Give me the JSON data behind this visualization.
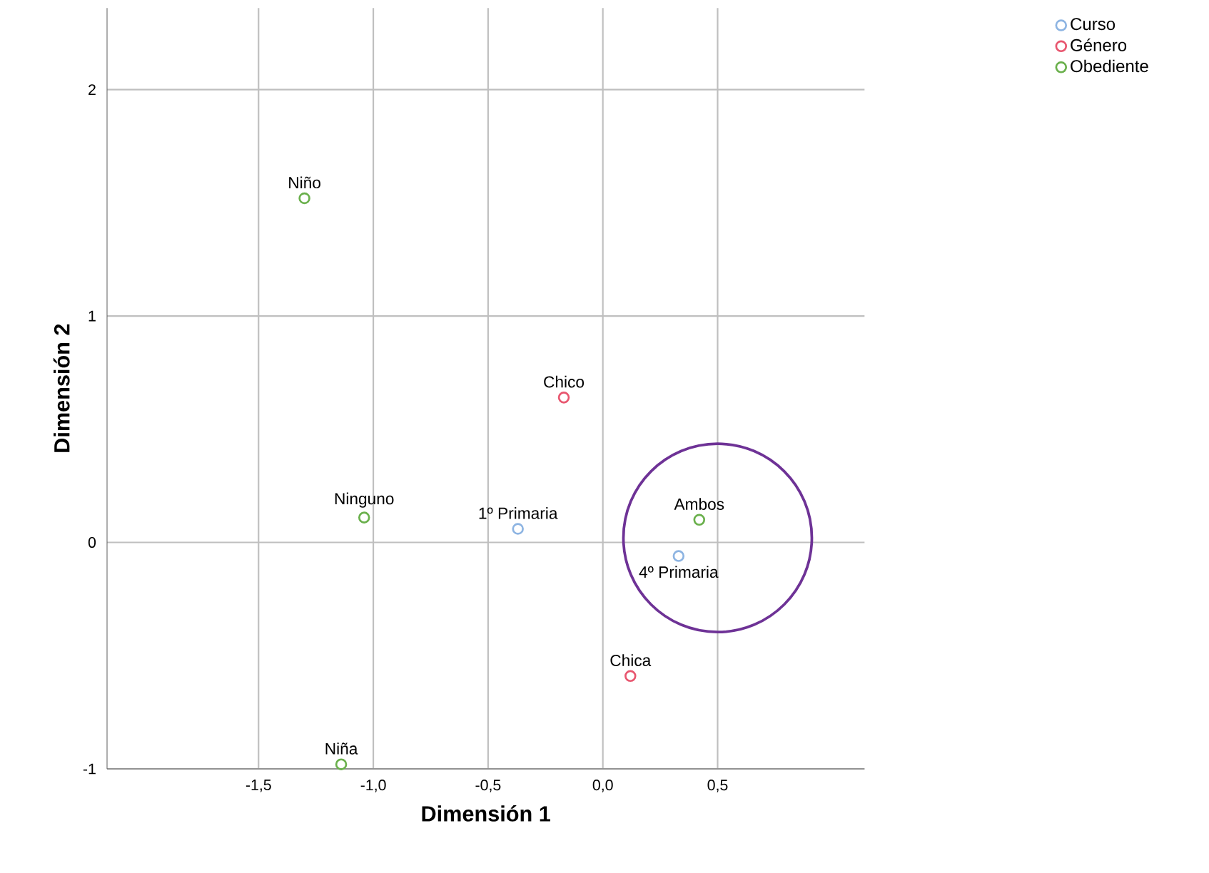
{
  "chart_data": {
    "type": "scatter",
    "xlabel": "Dimensión 1",
    "ylabel": "Dimensión 2",
    "xlim": [
      -2.16,
      1.14
    ],
    "ylim": [
      -1,
      2.36
    ],
    "xticks": [
      {
        "value": -1.5,
        "label": "-1,5"
      },
      {
        "value": -1.0,
        "label": "-1,0"
      },
      {
        "value": -0.5,
        "label": "-0,5"
      },
      {
        "value": 0.0,
        "label": "0,0"
      },
      {
        "value": 0.5,
        "label": "0,5"
      }
    ],
    "yticks": [
      -1,
      0,
      1,
      2
    ],
    "grid": true,
    "legend": "top right",
    "marker": "circle",
    "series": [
      {
        "name": "Curso",
        "color": "#8db4e2",
        "x": [
          -0.37,
          0.33
        ],
        "values": [
          0.06,
          -0.06
        ]
      },
      {
        "name": "Género",
        "color": "#e8566f",
        "x": [
          -0.17,
          0.12
        ],
        "values": [
          0.64,
          -0.59
        ]
      },
      {
        "name": "Obediente",
        "color": "#6ab04c",
        "x": [
          -1.3,
          -1.04,
          0.42,
          -1.14
        ],
        "values": [
          1.52,
          0.11,
          0.1,
          -0.98
        ]
      }
    ],
    "annotations": [
      {
        "text": "Niño",
        "x": -1.3,
        "y": 1.52
      },
      {
        "text": "Chico",
        "x": -0.17,
        "y": 0.64
      },
      {
        "text": "Ninguno",
        "x": -1.04,
        "y": 0.11
      },
      {
        "text": "1º Primaria",
        "x": -0.37,
        "y": 0.06
      },
      {
        "text": "Ambos",
        "x": 0.42,
        "y": 0.1
      },
      {
        "text": "4º Primaria",
        "x": 0.33,
        "y": -0.06
      },
      {
        "text": "Chica",
        "x": 0.12,
        "y": -0.59
      },
      {
        "text": "Niña",
        "x": -1.14,
        "y": -0.98
      }
    ]
  }
}
